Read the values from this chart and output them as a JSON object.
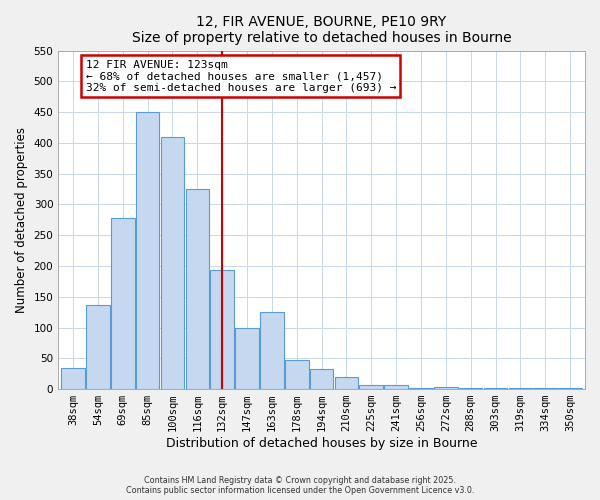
{
  "title": "12, FIR AVENUE, BOURNE, PE10 9RY",
  "subtitle": "Size of property relative to detached houses in Bourne",
  "xlabel": "Distribution of detached houses by size in Bourne",
  "ylabel": "Number of detached properties",
  "bar_labels": [
    "38sqm",
    "54sqm",
    "69sqm",
    "85sqm",
    "100sqm",
    "116sqm",
    "132sqm",
    "147sqm",
    "163sqm",
    "178sqm",
    "194sqm",
    "210sqm",
    "225sqm",
    "241sqm",
    "256sqm",
    "272sqm",
    "288sqm",
    "303sqm",
    "319sqm",
    "334sqm",
    "350sqm"
  ],
  "bar_values": [
    35,
    137,
    278,
    450,
    410,
    325,
    193,
    100,
    126,
    47,
    32,
    20,
    6,
    7,
    2,
    3,
    2,
    1,
    1,
    1,
    2
  ],
  "bar_color": "#c5d8f0",
  "bar_edge_color": "#5b9bd5",
  "vline_x": 6.0,
  "vline_color": "#cc0000",
  "annotation_title": "12 FIR AVENUE: 123sqm",
  "annotation_line1": "← 68% of detached houses are smaller (1,457)",
  "annotation_line2": "32% of semi-detached houses are larger (693) →",
  "annotation_box_color": "#cc0000",
  "ylim": [
    0,
    550
  ],
  "yticks": [
    0,
    50,
    100,
    150,
    200,
    250,
    300,
    350,
    400,
    450,
    500,
    550
  ],
  "footer1": "Contains HM Land Registry data © Crown copyright and database right 2025.",
  "footer2": "Contains public sector information licensed under the Open Government Licence v3.0.",
  "bg_color": "#f0f0f0",
  "plot_bg_color": "#ffffff",
  "grid_color": "#c8d8e8"
}
